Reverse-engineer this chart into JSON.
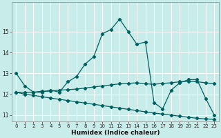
{
  "title": "",
  "xlabel": "Humidex (Indice chaleur)",
  "ylabel": "",
  "xlim": [
    -0.5,
    23.5
  ],
  "ylim": [
    10.7,
    16.4
  ],
  "yticks": [
    11,
    12,
    13,
    14,
    15
  ],
  "xticks": [
    0,
    1,
    2,
    3,
    4,
    5,
    6,
    7,
    8,
    9,
    10,
    11,
    12,
    13,
    14,
    15,
    16,
    17,
    18,
    19,
    20,
    21,
    22,
    23
  ],
  "background_color": "#c8ecea",
  "grid_color": "#ffffff",
  "line_color": "#006060",
  "series": [
    {
      "x": [
        0,
        1,
        2,
        3,
        4,
        5,
        6,
        7,
        8,
        9,
        10,
        11,
        12,
        13,
        14,
        15,
        16,
        17,
        18,
        19,
        20,
        21,
        22,
        23
      ],
      "y": [
        13.0,
        12.4,
        12.1,
        12.1,
        12.2,
        12.1,
        12.6,
        12.85,
        13.45,
        13.8,
        14.9,
        15.1,
        15.6,
        15.0,
        14.4,
        14.5,
        11.6,
        11.3,
        12.2,
        12.55,
        12.7,
        12.7,
        11.8,
        11.0
      ],
      "marker": "D",
      "markersize": 2.2,
      "linewidth": 0.9
    },
    {
      "x": [
        0,
        1,
        2,
        3,
        4,
        5,
        6,
        7,
        8,
        9,
        10,
        11,
        12,
        13,
        14,
        15,
        16,
        17,
        18,
        19,
        20,
        21,
        22,
        23
      ],
      "y": [
        12.1,
        12.1,
        12.1,
        12.15,
        12.15,
        12.2,
        12.22,
        12.25,
        12.3,
        12.35,
        12.4,
        12.45,
        12.5,
        12.52,
        12.55,
        12.5,
        12.48,
        12.52,
        12.55,
        12.6,
        12.62,
        12.6,
        12.55,
        12.5
      ],
      "marker": "D",
      "markersize": 2.2,
      "linewidth": 0.9
    },
    {
      "x": [
        0,
        1,
        2,
        3,
        4,
        5,
        6,
        7,
        8,
        9,
        10,
        11,
        12,
        13,
        14,
        15,
        16,
        17,
        18,
        19,
        20,
        21,
        22,
        23
      ],
      "y": [
        12.1,
        12.0,
        11.95,
        11.88,
        11.82,
        11.76,
        11.7,
        11.64,
        11.58,
        11.52,
        11.46,
        11.4,
        11.34,
        11.28,
        11.22,
        11.16,
        11.1,
        11.05,
        11.0,
        10.95,
        10.9,
        10.85,
        10.82,
        10.8
      ],
      "marker": "D",
      "markersize": 2.2,
      "linewidth": 0.9
    }
  ],
  "tick_labelsize": 5.5,
  "xlabel_fontsize": 6.5,
  "xlabel_fontweight": "bold"
}
